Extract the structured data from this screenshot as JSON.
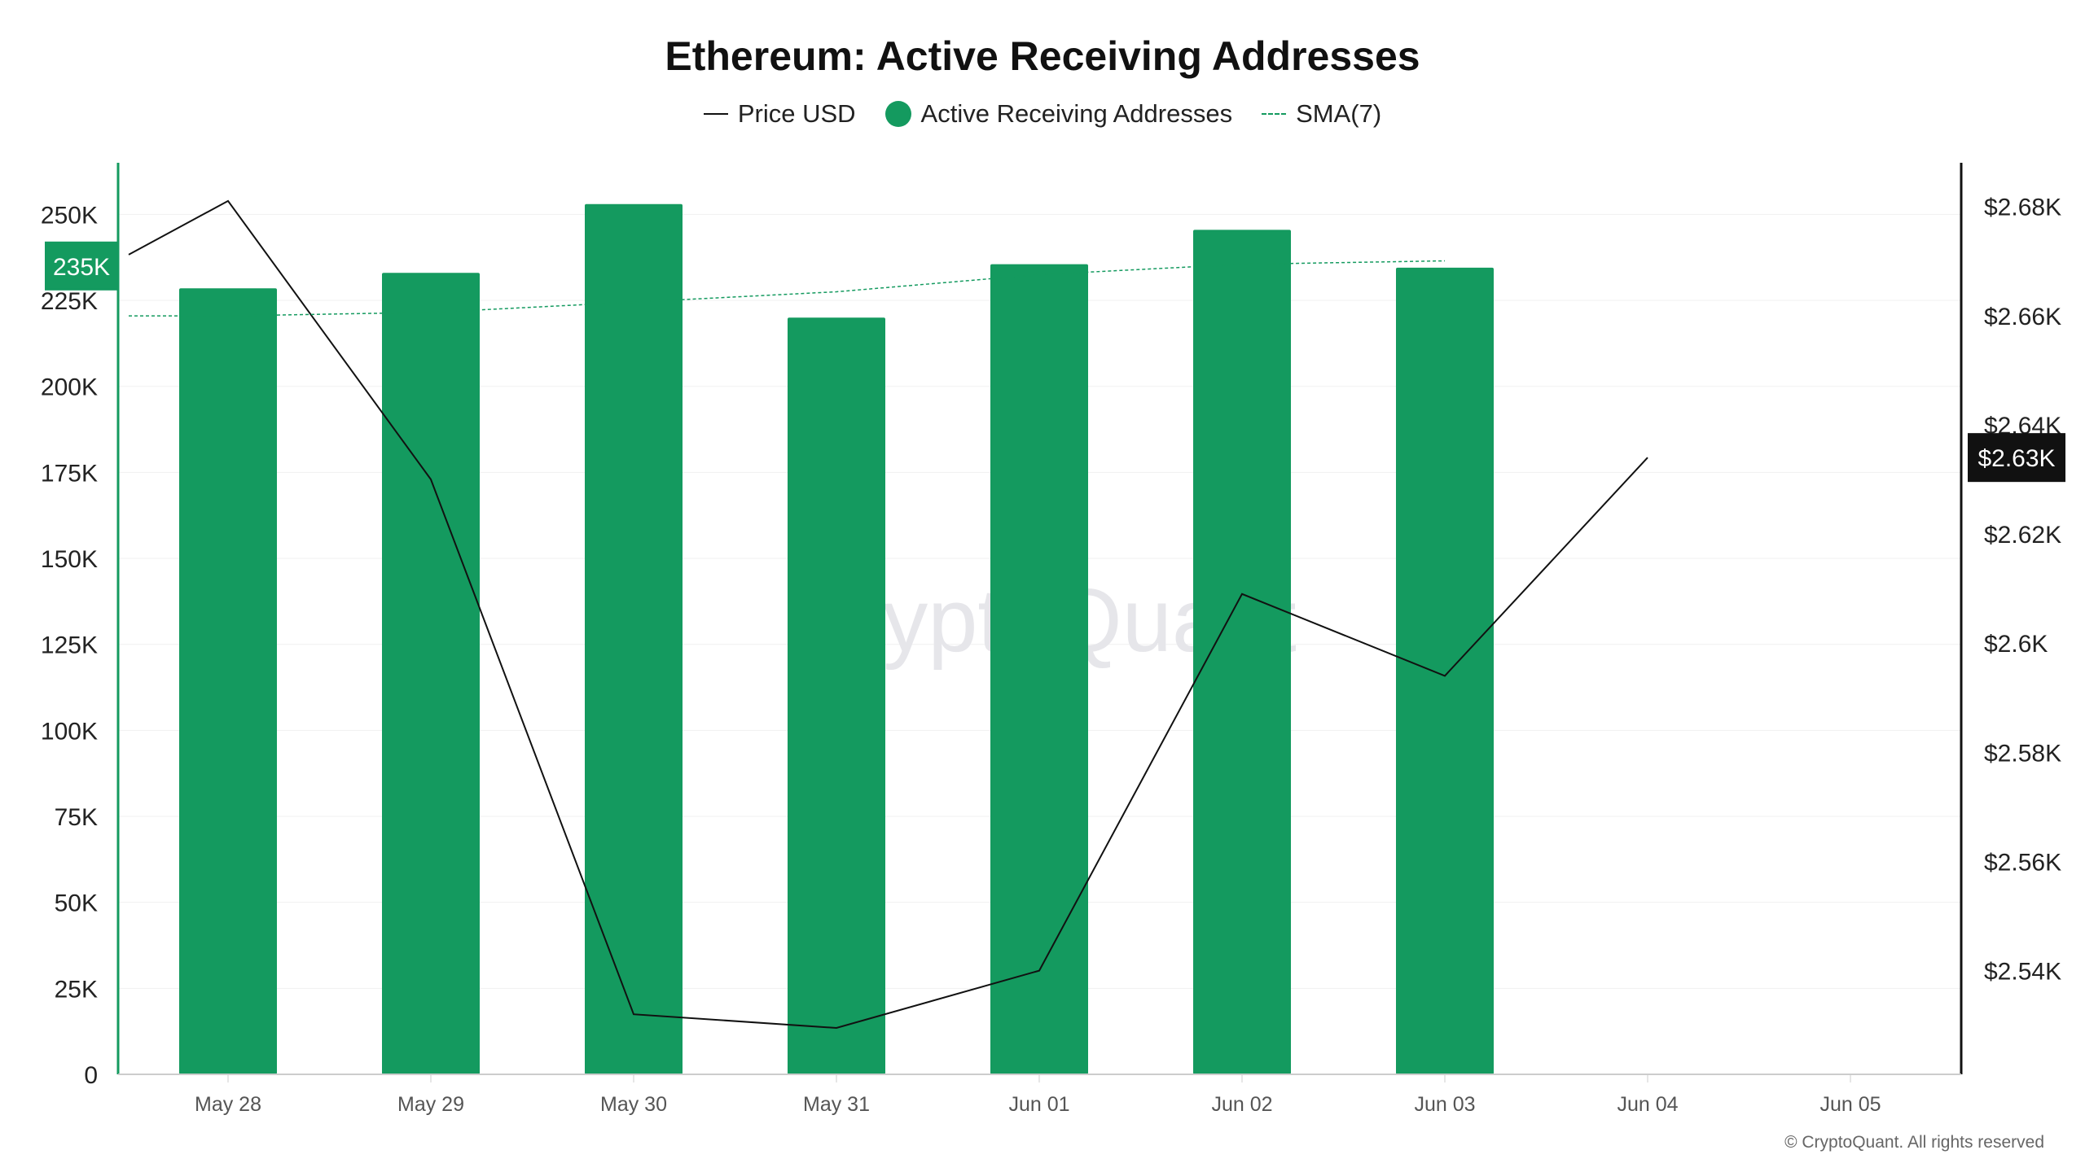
{
  "chart_data": {
    "type": "bar",
    "title": "Ethereum: Active Receiving Addresses",
    "categories": [
      "May 28",
      "May 29",
      "May 30",
      "May 31",
      "Jun 01",
      "Jun 02",
      "Jun 03",
      "Jun 04",
      "Jun 05"
    ],
    "series": [
      {
        "name": "Active Receiving Addresses",
        "type": "bar",
        "axis": "left",
        "color": "#149a5f",
        "values": [
          228500,
          233000,
          253000,
          220000,
          235500,
          245500,
          234500,
          null,
          null
        ]
      },
      {
        "name": "Price USD",
        "type": "line",
        "axis": "right",
        "color": "#111111",
        "values": [
          2681,
          2630,
          2532,
          2529.5,
          2540,
          2609,
          2594,
          2634,
          null
        ]
      },
      {
        "name": "SMA(7)",
        "type": "line",
        "dashed": true,
        "axis": "left",
        "color": "#149a5f",
        "values": [
          220500,
          221500,
          224500,
          227500,
          232500,
          235500,
          236500,
          null,
          null
        ]
      }
    ],
    "y_left": {
      "ylim": [
        0,
        265000
      ],
      "ticks": [
        0,
        25000,
        50000,
        75000,
        100000,
        125000,
        150000,
        175000,
        200000,
        225000,
        250000
      ],
      "tick_labels": [
        "0",
        "25K",
        "50K",
        "75K",
        "100K",
        "125K",
        "150K",
        "175K",
        "200K",
        "225K",
        "250K"
      ]
    },
    "y_right": {
      "ylim": [
        2521,
        2688
      ],
      "ticks": [
        2540,
        2560,
        2580,
        2600,
        2620,
        2640,
        2660,
        2680
      ],
      "tick_labels": [
        "$2.54K",
        "$2.56K",
        "$2.58K",
        "$2.6K",
        "$2.62K",
        "$2.64K",
        "$2.66K",
        "$2.68K"
      ]
    },
    "current_labels": {
      "left_value": 235000,
      "left_label": "235K",
      "right_value": 2634,
      "right_label": "$2.63K"
    },
    "legend": {
      "position": "top-center",
      "items": [
        "Price USD",
        "Active Receiving Addresses",
        "SMA(7)"
      ]
    },
    "grid": true,
    "watermark": "CryptoQuant"
  },
  "footer": {
    "copyright": "© CryptoQuant. All rights reserved"
  }
}
